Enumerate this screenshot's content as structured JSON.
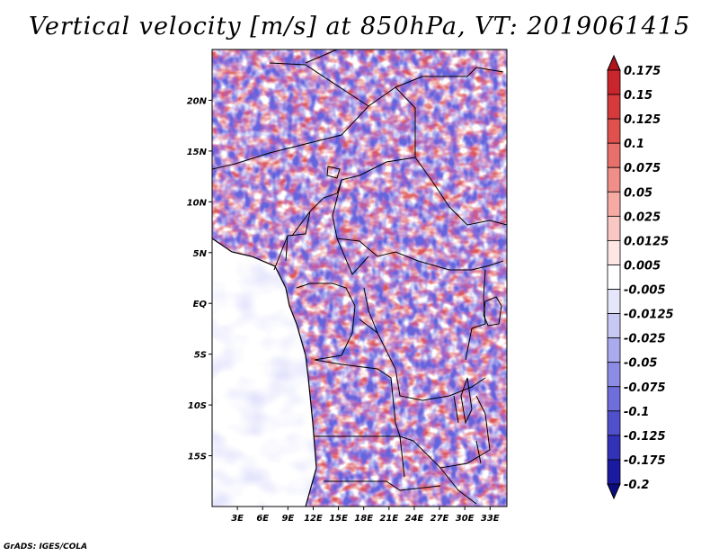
{
  "title": "Vertical velocity [m/s] at 850hPa, VT: 2019061415",
  "credit": "GrADS: IGES/COLA",
  "map": {
    "lon_range": [
      0,
      35
    ],
    "lat_range": [
      -20,
      25
    ],
    "lon_ticks": [
      "3E",
      "6E",
      "9E",
      "12E",
      "15E",
      "18E",
      "21E",
      "24E",
      "27E",
      "30E",
      "33E"
    ],
    "lat_ticks": [
      "20N",
      "15N",
      "10N",
      "5N",
      "EQ",
      "5S",
      "10S",
      "15S"
    ],
    "field": "vertical velocity (m/s)",
    "level": "850hPa",
    "valid_time": "2019061415"
  },
  "colorbar": {
    "labels": [
      "0.175",
      "0.15",
      "0.125",
      "0.1",
      "0.075",
      "0.05",
      "0.025",
      "0.0125",
      "0.005",
      "-0.005",
      "-0.0125",
      "-0.025",
      "-0.05",
      "-0.075",
      "-0.1",
      "-0.125",
      "-0.175",
      "-0.2"
    ],
    "colors": [
      "#b0141c",
      "#c8262c",
      "#d63a3c",
      "#e0504c",
      "#e8706a",
      "#f08e88",
      "#f6aaa4",
      "#fac8c4",
      "#fde6e4",
      "#ffffff",
      "#e6e6fb",
      "#c8c8f5",
      "#aaaaee",
      "#8c8ce6",
      "#6e6edc",
      "#5050cc",
      "#3232b8",
      "#1a1aa0",
      "#0c0c80"
    ]
  }
}
